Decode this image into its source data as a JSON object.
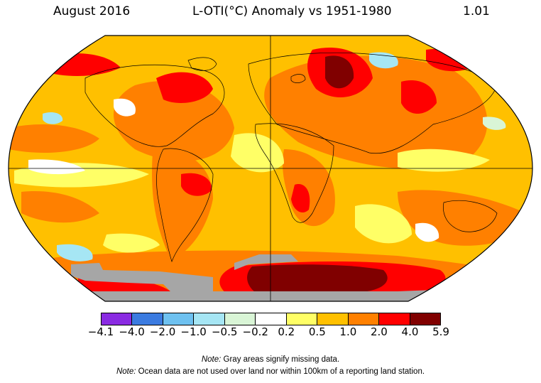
{
  "header": {
    "period": "August 2016",
    "title": "L-OTI(°C) Anomaly vs 1951-1980",
    "global_mean": "1.01"
  },
  "colors": {
    "missing": "#a6a6a6",
    "ocean_neutral": "#ffffff",
    "coastline": "#000000",
    "grid": "#000000"
  },
  "legend": {
    "bins": [
      {
        "color": "#8a2be2",
        "from": "-4.1",
        "to": "-4.0"
      },
      {
        "color": "#3b7be0",
        "from": "-4.0",
        "to": "-2.0"
      },
      {
        "color": "#6ec1f0",
        "from": "-2.0",
        "to": "-1.0"
      },
      {
        "color": "#a6e6f4",
        "from": "-1.0",
        "to": "-0.5"
      },
      {
        "color": "#d9f5d6",
        "from": "-0.5",
        "to": "-0.2"
      },
      {
        "color": "#ffffff",
        "from": "-0.2",
        "to": "0.2"
      },
      {
        "color": "#ffff66",
        "from": "0.2",
        "to": "0.5"
      },
      {
        "color": "#ffc000",
        "from": "0.5",
        "to": "1.0"
      },
      {
        "color": "#ff8000",
        "from": "1.0",
        "to": "2.0"
      },
      {
        "color": "#ff0000",
        "from": "2.0",
        "to": "4.0"
      },
      {
        "color": "#800000",
        "from": "4.0",
        "to": "5.9"
      }
    ],
    "ticks": [
      "−4.1",
      "−4.0",
      "−2.0",
      "−1.0",
      "−0.5",
      "−0.2",
      "0.2",
      "0.5",
      "1.0",
      "2.0",
      "4.0",
      "5.9"
    ]
  },
  "notes": [
    {
      "label": "Note:",
      "text": " Gray areas signify missing data."
    },
    {
      "label": "Note:",
      "text": " Ocean data are not used over land nor within 100km of a reporting land station."
    }
  ],
  "projection": "Robinson"
}
